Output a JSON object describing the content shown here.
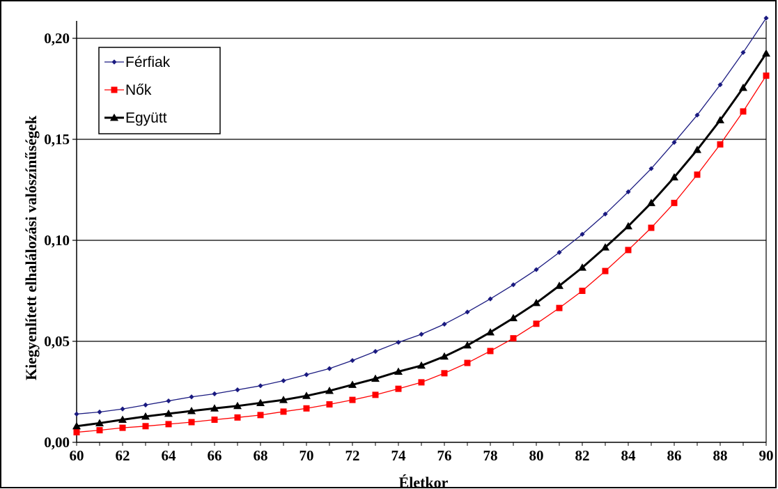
{
  "chart_data": {
    "type": "line",
    "xlabel": "Életkor",
    "ylabel": "Kiegyenlített elhalálozási valószínűségek",
    "xlim": [
      60,
      90
    ],
    "ylim": [
      0,
      0.2
    ],
    "x_ticks": [
      "60",
      "62",
      "64",
      "66",
      "68",
      "70",
      "72",
      "74",
      "76",
      "78",
      "80",
      "82",
      "84",
      "86",
      "88",
      "90"
    ],
    "y_ticks": [
      "0,00",
      "0,05",
      "0,10",
      "0,15",
      "0,20"
    ],
    "grid": "horizontal",
    "legend_position": "top-left",
    "x": [
      60,
      61,
      62,
      63,
      64,
      65,
      66,
      67,
      68,
      69,
      70,
      71,
      72,
      73,
      74,
      75,
      76,
      77,
      78,
      79,
      80,
      81,
      82,
      83,
      84,
      85,
      86,
      87,
      88,
      89,
      90
    ],
    "series": [
      {
        "name": "Férfiak",
        "color": "#1a1a80",
        "marker": "diamond",
        "values": [
          0.014,
          0.015,
          0.0165,
          0.0185,
          0.0205,
          0.0225,
          0.024,
          0.026,
          0.028,
          0.0305,
          0.0335,
          0.0365,
          0.0405,
          0.045,
          0.0495,
          0.0535,
          0.0585,
          0.0645,
          0.071,
          0.078,
          0.0855,
          0.094,
          0.103,
          0.113,
          0.124,
          0.1355,
          0.1485,
          0.162,
          0.177,
          0.193,
          0.21
        ]
      },
      {
        "name": "Nők",
        "color": "#ff0000",
        "marker": "square",
        "values": [
          0.005,
          0.006,
          0.0072,
          0.008,
          0.009,
          0.01,
          0.0112,
          0.0123,
          0.0135,
          0.0152,
          0.0168,
          0.0188,
          0.021,
          0.0235,
          0.0265,
          0.0297,
          0.0342,
          0.0393,
          0.0452,
          0.0515,
          0.0587,
          0.0665,
          0.075,
          0.0848,
          0.0952,
          0.1062,
          0.1185,
          0.1325,
          0.1475,
          0.1638,
          0.1815
        ]
      },
      {
        "name": "Együtt",
        "color": "#000000",
        "marker": "triangle",
        "values": [
          0.008,
          0.0095,
          0.0112,
          0.0128,
          0.0142,
          0.0155,
          0.0168,
          0.018,
          0.0195,
          0.021,
          0.023,
          0.0255,
          0.0285,
          0.0315,
          0.035,
          0.038,
          0.0425,
          0.048,
          0.0545,
          0.0615,
          0.069,
          0.0775,
          0.0865,
          0.0965,
          0.107,
          0.1185,
          0.1312,
          0.1448,
          0.1595,
          0.1755,
          0.1925
        ]
      }
    ]
  }
}
